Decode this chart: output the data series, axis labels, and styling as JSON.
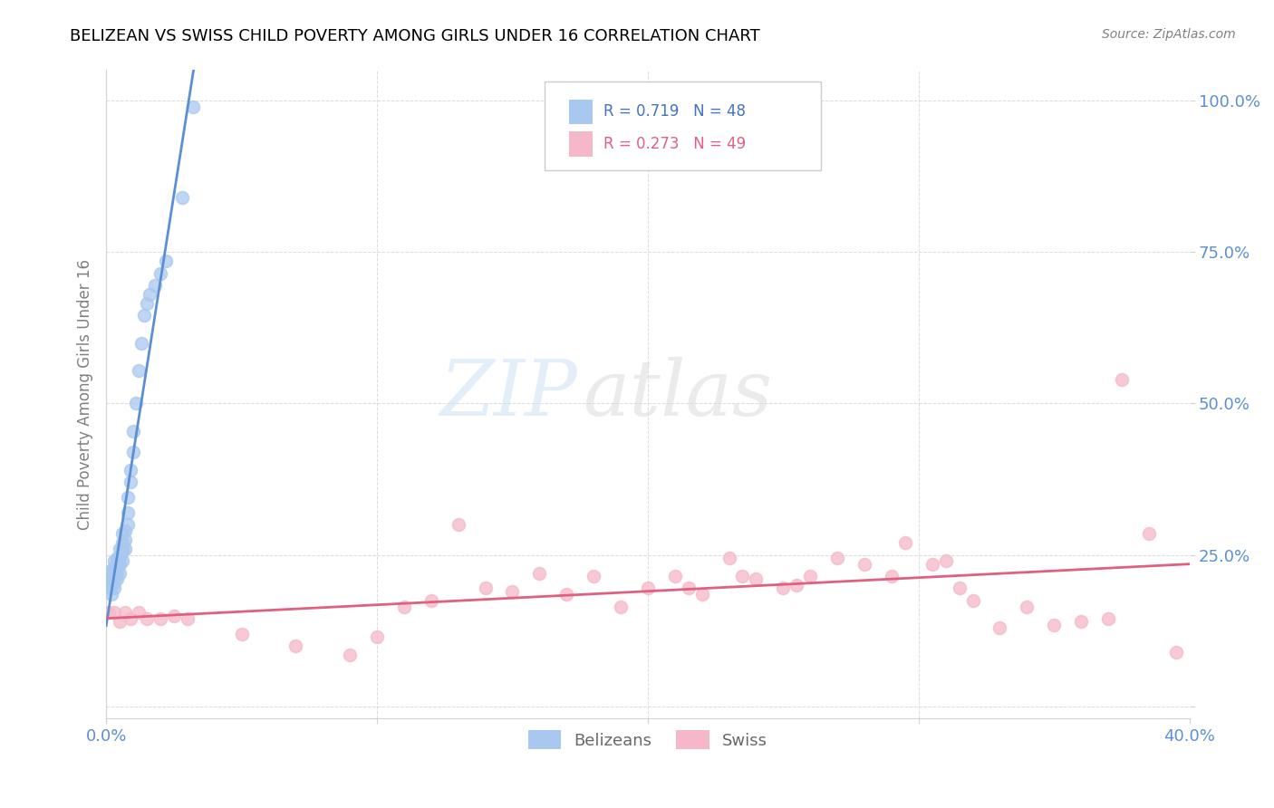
{
  "title": "BELIZEAN VS SWISS CHILD POVERTY AMONG GIRLS UNDER 16 CORRELATION CHART",
  "source": "Source: ZipAtlas.com",
  "ylabel": "Child Poverty Among Girls Under 16",
  "xlim": [
    0.0,
    0.4
  ],
  "ylim": [
    -0.02,
    1.05
  ],
  "xticks": [
    0.0,
    0.1,
    0.2,
    0.3,
    0.4
  ],
  "xtick_labels": [
    "0.0%",
    "",
    "",
    "",
    "40.0%"
  ],
  "yticks": [
    0.0,
    0.25,
    0.5,
    0.75,
    1.0
  ],
  "ytick_labels": [
    "",
    "25.0%",
    "50.0%",
    "75.0%",
    "100.0%"
  ],
  "belizean_color": "#a8c8f0",
  "swiss_color": "#f5b8c8",
  "belizean_line_color": "#5b8fd4",
  "swiss_line_color": "#e06080",
  "watermark_zip": "ZIP",
  "watermark_atlas": "atlas",
  "belizean_x": [
    0.001,
    0.001,
    0.001,
    0.001,
    0.002,
    0.002,
    0.002,
    0.002,
    0.002,
    0.003,
    0.003,
    0.003,
    0.003,
    0.003,
    0.004,
    0.004,
    0.004,
    0.004,
    0.005,
    0.005,
    0.005,
    0.005,
    0.006,
    0.006,
    0.006,
    0.006,
    0.006,
    0.007,
    0.007,
    0.007,
    0.008,
    0.008,
    0.008,
    0.009,
    0.009,
    0.01,
    0.01,
    0.011,
    0.012,
    0.013,
    0.014,
    0.015,
    0.016,
    0.018,
    0.02,
    0.022,
    0.028,
    0.032
  ],
  "belizean_y": [
    0.195,
    0.21,
    0.215,
    0.22,
    0.185,
    0.2,
    0.21,
    0.215,
    0.225,
    0.195,
    0.205,
    0.22,
    0.23,
    0.24,
    0.21,
    0.22,
    0.23,
    0.245,
    0.22,
    0.235,
    0.245,
    0.26,
    0.24,
    0.255,
    0.26,
    0.27,
    0.285,
    0.26,
    0.275,
    0.29,
    0.3,
    0.32,
    0.345,
    0.37,
    0.39,
    0.42,
    0.455,
    0.5,
    0.555,
    0.6,
    0.645,
    0.665,
    0.68,
    0.695,
    0.715,
    0.735,
    0.84,
    0.99
  ],
  "swiss_x": [
    0.001,
    0.003,
    0.005,
    0.007,
    0.009,
    0.012,
    0.015,
    0.02,
    0.025,
    0.03,
    0.05,
    0.07,
    0.09,
    0.1,
    0.11,
    0.12,
    0.13,
    0.14,
    0.15,
    0.16,
    0.17,
    0.18,
    0.19,
    0.2,
    0.21,
    0.215,
    0.22,
    0.23,
    0.235,
    0.24,
    0.25,
    0.255,
    0.26,
    0.27,
    0.28,
    0.29,
    0.295,
    0.305,
    0.31,
    0.315,
    0.32,
    0.33,
    0.34,
    0.35,
    0.36,
    0.37,
    0.375,
    0.385,
    0.395
  ],
  "swiss_y": [
    0.155,
    0.155,
    0.14,
    0.155,
    0.145,
    0.155,
    0.145,
    0.145,
    0.15,
    0.145,
    0.12,
    0.1,
    0.085,
    0.115,
    0.165,
    0.175,
    0.3,
    0.195,
    0.19,
    0.22,
    0.185,
    0.215,
    0.165,
    0.195,
    0.215,
    0.195,
    0.185,
    0.245,
    0.215,
    0.21,
    0.195,
    0.2,
    0.215,
    0.245,
    0.235,
    0.215,
    0.27,
    0.235,
    0.24,
    0.195,
    0.175,
    0.13,
    0.165,
    0.135,
    0.14,
    0.145,
    0.54,
    0.285,
    0.09
  ]
}
